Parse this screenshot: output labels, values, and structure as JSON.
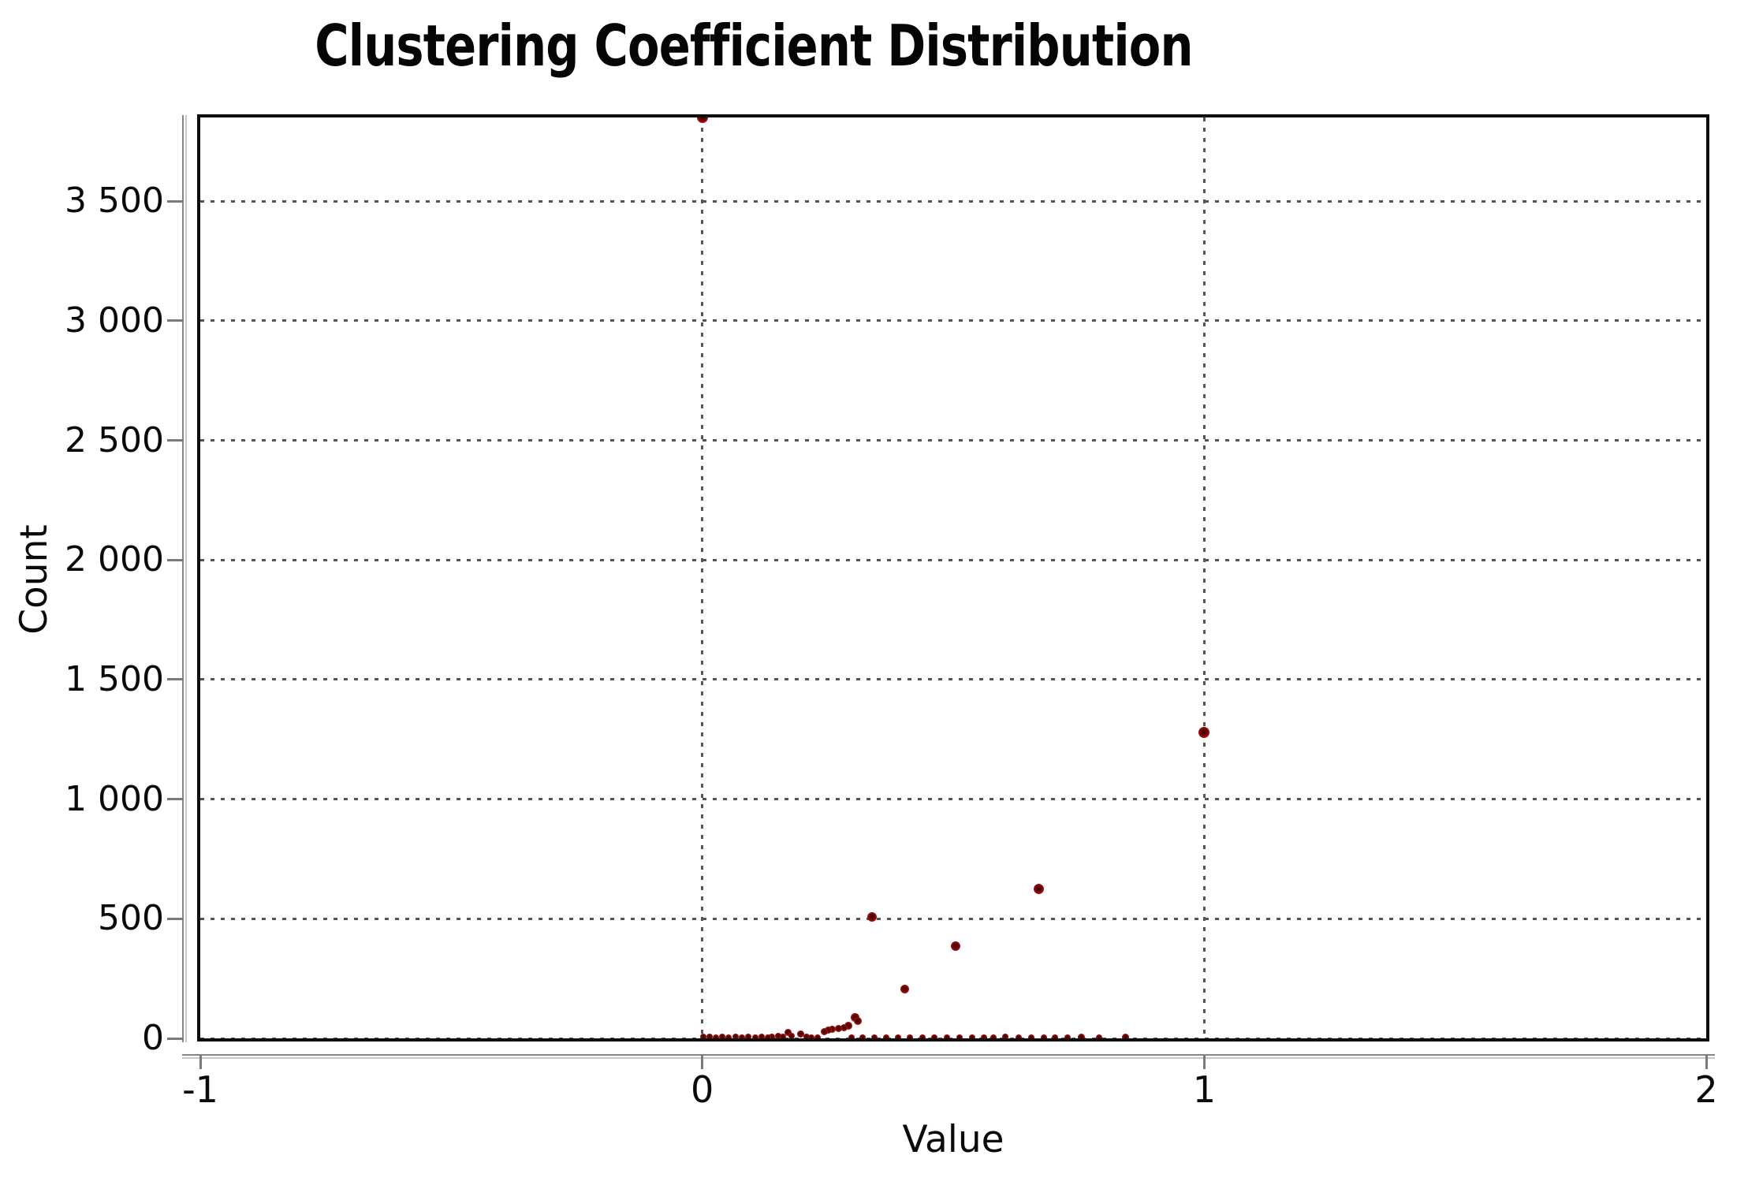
{
  "chart_data": {
    "type": "scatter",
    "title": "Clustering Coefficient Distribution",
    "xlabel": "Value",
    "ylabel": "Count",
    "xlim": [
      -1,
      2
    ],
    "ylim": [
      0,
      3850
    ],
    "x_ticks": [
      {
        "value": -1,
        "label": "-1"
      },
      {
        "value": 0,
        "label": "0"
      },
      {
        "value": 1,
        "label": "1"
      },
      {
        "value": 2,
        "label": "2"
      }
    ],
    "y_ticks": [
      {
        "value": 0,
        "label": "0"
      },
      {
        "value": 500,
        "label": "500"
      },
      {
        "value": 1000,
        "label": "1 000"
      },
      {
        "value": 1500,
        "label": "1 500"
      },
      {
        "value": 2000,
        "label": "2 000"
      },
      {
        "value": 2500,
        "label": "2 500"
      },
      {
        "value": 3000,
        "label": "3 000"
      },
      {
        "value": 3500,
        "label": "3 500"
      }
    ],
    "grid": {
      "style": "dotted",
      "x_gridlines": [
        0,
        1
      ],
      "y_gridlines": [
        0,
        500,
        1000,
        1500,
        2000,
        2500,
        3000,
        3500
      ]
    },
    "legend": "none",
    "marker": "circle",
    "colors": {
      "point_fill": "#c41414",
      "point_core": "#2a0303",
      "grid_color": "#555555",
      "axis_line_color": "#868686",
      "plot_border_color": "#0d0d0d",
      "text_color": "#000000",
      "background": "#ffffff"
    },
    "series": [
      {
        "name": "Clustering Coefficient",
        "color": "#c41414",
        "points": [
          {
            "x": 0.0,
            "y": 3850,
            "r": 7,
            "clipped_top": true
          },
          {
            "x": 1.0,
            "y": 1280,
            "r": 7
          },
          {
            "x": 0.671,
            "y": 625,
            "r": 6.5
          },
          {
            "x": 0.338,
            "y": 507,
            "r": 6
          },
          {
            "x": 0.505,
            "y": 385,
            "r": 6
          },
          {
            "x": 0.404,
            "y": 205,
            "r": 5.5
          },
          {
            "x": 0.304,
            "y": 88,
            "r": 5.5
          },
          {
            "x": 0.31,
            "y": 71,
            "r": 5
          },
          {
            "x": 0.291,
            "y": 52,
            "r": 5
          },
          {
            "x": 0.282,
            "y": 45,
            "r": 4.5
          },
          {
            "x": 0.271,
            "y": 41,
            "r": 4.5
          },
          {
            "x": 0.259,
            "y": 39,
            "r": 4.5
          },
          {
            "x": 0.251,
            "y": 36,
            "r": 4.5
          },
          {
            "x": 0.243,
            "y": 28,
            "r": 4.5
          },
          {
            "x": 0.171,
            "y": 25,
            "r": 4.5
          },
          {
            "x": 0.196,
            "y": 18,
            "r": 4.5
          },
          {
            "x": 0.178,
            "y": 10,
            "r": 4
          },
          {
            "x": 0.208,
            "y": 7,
            "r": 4
          },
          {
            "x": 0.139,
            "y": 6,
            "r": 4
          },
          {
            "x": 0.218,
            "y": 3,
            "r": 4
          },
          {
            "x": 0.002,
            "y": 5,
            "r": 4
          },
          {
            "x": 0.014,
            "y": 7,
            "r": 4
          },
          {
            "x": 0.027,
            "y": 4,
            "r": 4
          },
          {
            "x": 0.04,
            "y": 6,
            "r": 4
          },
          {
            "x": 0.053,
            "y": 4,
            "r": 4
          },
          {
            "x": 0.066,
            "y": 7,
            "r": 4
          },
          {
            "x": 0.079,
            "y": 4,
            "r": 4
          },
          {
            "x": 0.092,
            "y": 6,
            "r": 4
          },
          {
            "x": 0.105,
            "y": 4,
            "r": 4
          },
          {
            "x": 0.118,
            "y": 6,
            "r": 4
          },
          {
            "x": 0.131,
            "y": 4,
            "r": 4
          },
          {
            "x": 0.152,
            "y": 9,
            "r": 4
          },
          {
            "x": 0.161,
            "y": 5,
            "r": 4
          },
          {
            "x": 0.23,
            "y": 4,
            "r": 4
          },
          {
            "x": 0.298,
            "y": 2,
            "r": 4
          },
          {
            "x": 0.32,
            "y": 3,
            "r": 4
          },
          {
            "x": 0.343,
            "y": 2,
            "r": 4
          },
          {
            "x": 0.366,
            "y": 3,
            "r": 4
          },
          {
            "x": 0.39,
            "y": 2,
            "r": 4
          },
          {
            "x": 0.414,
            "y": 3,
            "r": 4
          },
          {
            "x": 0.438,
            "y": 2,
            "r": 4
          },
          {
            "x": 0.462,
            "y": 3,
            "r": 4
          },
          {
            "x": 0.487,
            "y": 2,
            "r": 4
          },
          {
            "x": 0.512,
            "y": 3,
            "r": 4
          },
          {
            "x": 0.537,
            "y": 2,
            "r": 4
          },
          {
            "x": 0.562,
            "y": 3,
            "r": 4
          },
          {
            "x": 0.58,
            "y": 2,
            "r": 4
          },
          {
            "x": 0.604,
            "y": 5,
            "r": 4
          },
          {
            "x": 0.63,
            "y": 2,
            "r": 4
          },
          {
            "x": 0.655,
            "y": 3,
            "r": 4
          },
          {
            "x": 0.68,
            "y": 2,
            "r": 4
          },
          {
            "x": 0.703,
            "y": 3,
            "r": 4
          },
          {
            "x": 0.728,
            "y": 2,
            "r": 4
          },
          {
            "x": 0.756,
            "y": 6,
            "r": 4.5
          },
          {
            "x": 0.79,
            "y": 2,
            "r": 4
          },
          {
            "x": 0.843,
            "y": 6,
            "r": 4.5
          }
        ]
      }
    ]
  }
}
